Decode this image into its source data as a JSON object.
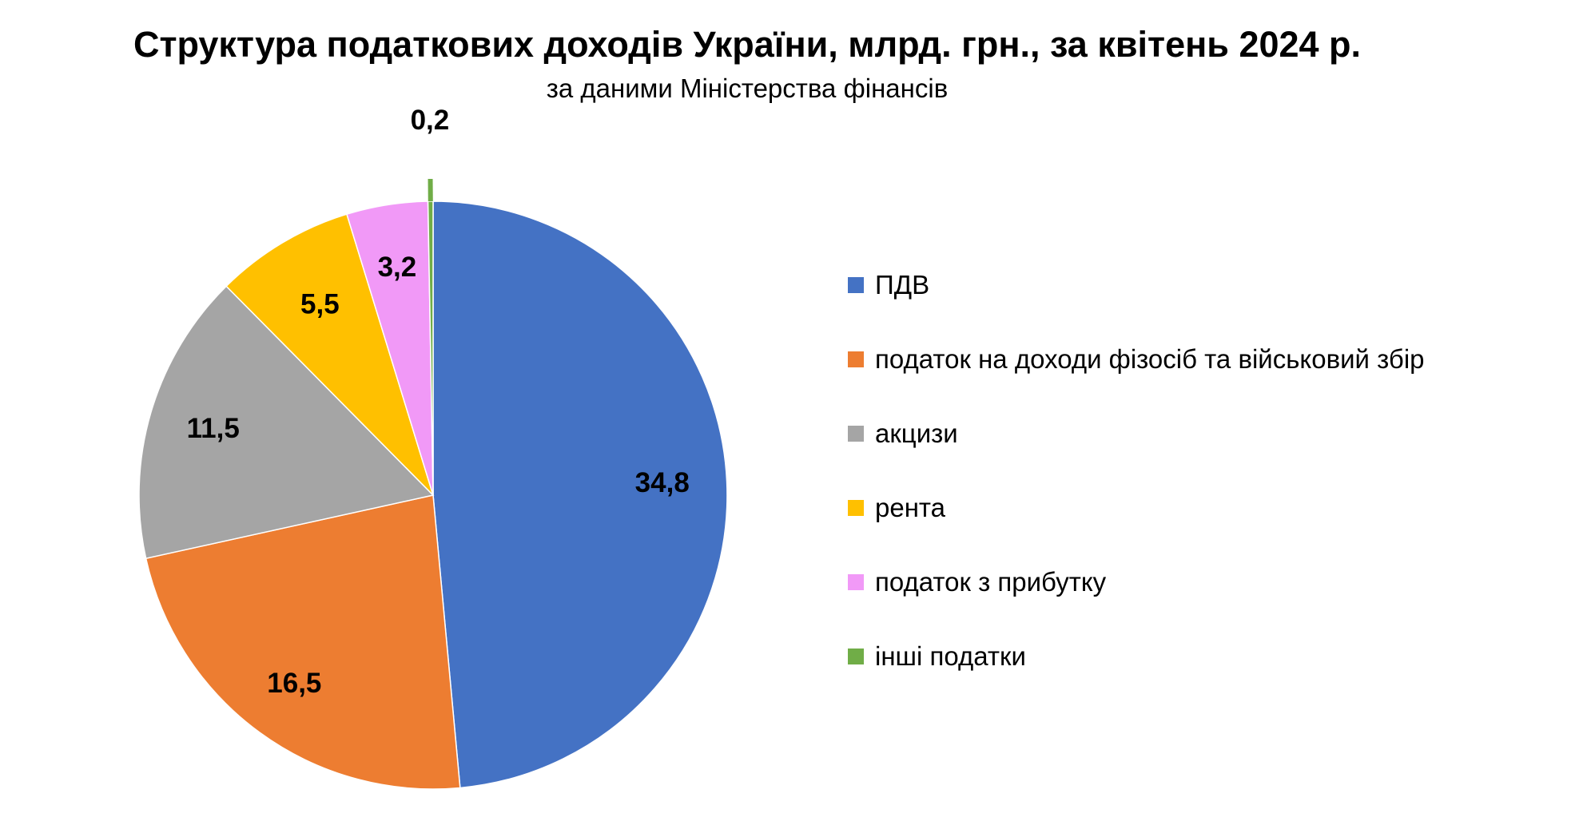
{
  "chart_data": {
    "type": "pie",
    "title": "Структура податкових доходів України, млрд. грн., за квітень 2024 р.",
    "subtitle": "за даними Міністерства фінансів",
    "legend_position": "right",
    "slices": [
      {
        "name": "ПДВ",
        "value": 34.8,
        "label": "34,8",
        "color": "#4472C4"
      },
      {
        "name": "податок на доходи фізосіб та військовий збір",
        "value": 16.5,
        "label": "16,5",
        "color": "#ED7D31"
      },
      {
        "name": "акцизи",
        "value": 11.5,
        "label": "11,5",
        "color": "#A5A5A5"
      },
      {
        "name": "рента",
        "value": 5.5,
        "label": "5,5",
        "color": "#FFC000"
      },
      {
        "name": "податок з прибутку",
        "value": 3.2,
        "label": "3,2",
        "color": "#F199F7"
      },
      {
        "name": "інші податки",
        "value": 0.2,
        "label": "0,2",
        "color": "#70AD47"
      }
    ]
  }
}
